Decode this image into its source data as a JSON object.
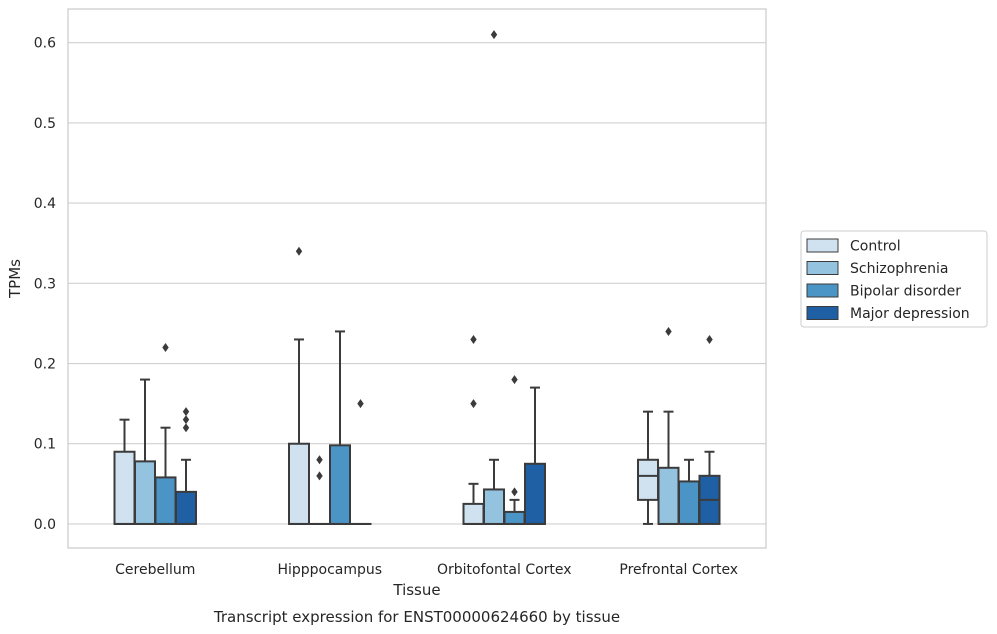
{
  "chart_data": {
    "type": "boxplot",
    "xlabel": "Tissue",
    "ylabel": "TPMs",
    "caption": "Transcript expression for ENST00000624660 by tissue",
    "ylim": [
      -0.03,
      0.642
    ],
    "yticks": [
      0.0,
      0.1,
      0.2,
      0.3,
      0.4,
      0.5,
      0.6
    ],
    "ytick_labels": [
      "0.0",
      "0.1",
      "0.2",
      "0.3",
      "0.4",
      "0.5",
      "0.6"
    ],
    "grid": "horizontal",
    "legend_position": "right",
    "categories": [
      "Cerebellum",
      "Hipppocampus",
      "Orbitofontal Cortex",
      "Prefrontal Cortex"
    ],
    "series": [
      {
        "name": "Control",
        "color": "#d0e1f0",
        "boxes": [
          {
            "whislo": 0.0,
            "q1": 0.0,
            "med": 0.0,
            "q3": 0.09,
            "whishi": 0.13,
            "fliers": []
          },
          {
            "whislo": 0.0,
            "q1": 0.0,
            "med": 0.0,
            "q3": 0.1,
            "whishi": 0.23,
            "fliers": [
              0.34
            ]
          },
          {
            "whislo": 0.0,
            "q1": 0.0,
            "med": 0.0,
            "q3": 0.025,
            "whishi": 0.05,
            "fliers": [
              0.15,
              0.23
            ]
          },
          {
            "whislo": 0.0,
            "q1": 0.03,
            "med": 0.06,
            "q3": 0.08,
            "whishi": 0.14,
            "fliers": []
          }
        ]
      },
      {
        "name": "Schizophrenia",
        "color": "#93c3df",
        "boxes": [
          {
            "whislo": 0.0,
            "q1": 0.0,
            "med": 0.0,
            "q3": 0.078,
            "whishi": 0.18,
            "fliers": []
          },
          {
            "whislo": 0.0,
            "q1": 0.0,
            "med": 0.0,
            "q3": 0.0,
            "whishi": 0.0,
            "fliers": [
              0.06,
              0.08
            ]
          },
          {
            "whislo": 0.0,
            "q1": 0.0,
            "med": 0.0,
            "q3": 0.043,
            "whishi": 0.08,
            "fliers": [
              0.61
            ]
          },
          {
            "whislo": 0.0,
            "q1": 0.0,
            "med": 0.0,
            "q3": 0.07,
            "whishi": 0.14,
            "fliers": [
              0.24
            ]
          }
        ]
      },
      {
        "name": "Bipolar disorder",
        "color": "#4b94c6",
        "boxes": [
          {
            "whislo": 0.0,
            "q1": 0.0,
            "med": 0.0,
            "q3": 0.058,
            "whishi": 0.12,
            "fliers": [
              0.22
            ]
          },
          {
            "whislo": 0.0,
            "q1": 0.0,
            "med": 0.0,
            "q3": 0.098,
            "whishi": 0.24,
            "fliers": []
          },
          {
            "whislo": 0.0,
            "q1": 0.0,
            "med": 0.0,
            "q3": 0.015,
            "whishi": 0.03,
            "fliers": [
              0.04,
              0.18
            ]
          },
          {
            "whislo": 0.0,
            "q1": 0.0,
            "med": 0.0,
            "q3": 0.053,
            "whishi": 0.08,
            "fliers": []
          }
        ]
      },
      {
        "name": "Major depression",
        "color": "#1f5fa3",
        "boxes": [
          {
            "whislo": 0.0,
            "q1": 0.0,
            "med": 0.0,
            "q3": 0.04,
            "whishi": 0.08,
            "fliers": [
              0.12,
              0.13,
              0.14
            ]
          },
          {
            "whislo": 0.0,
            "q1": 0.0,
            "med": 0.0,
            "q3": 0.0,
            "whishi": 0.0,
            "fliers": [
              0.15
            ]
          },
          {
            "whislo": 0.0,
            "q1": 0.0,
            "med": 0.0,
            "q3": 0.075,
            "whishi": 0.17,
            "fliers": []
          },
          {
            "whislo": 0.0,
            "q1": 0.0,
            "med": 0.03,
            "q3": 0.06,
            "whishi": 0.09,
            "fliers": [
              0.23
            ]
          }
        ]
      }
    ]
  }
}
